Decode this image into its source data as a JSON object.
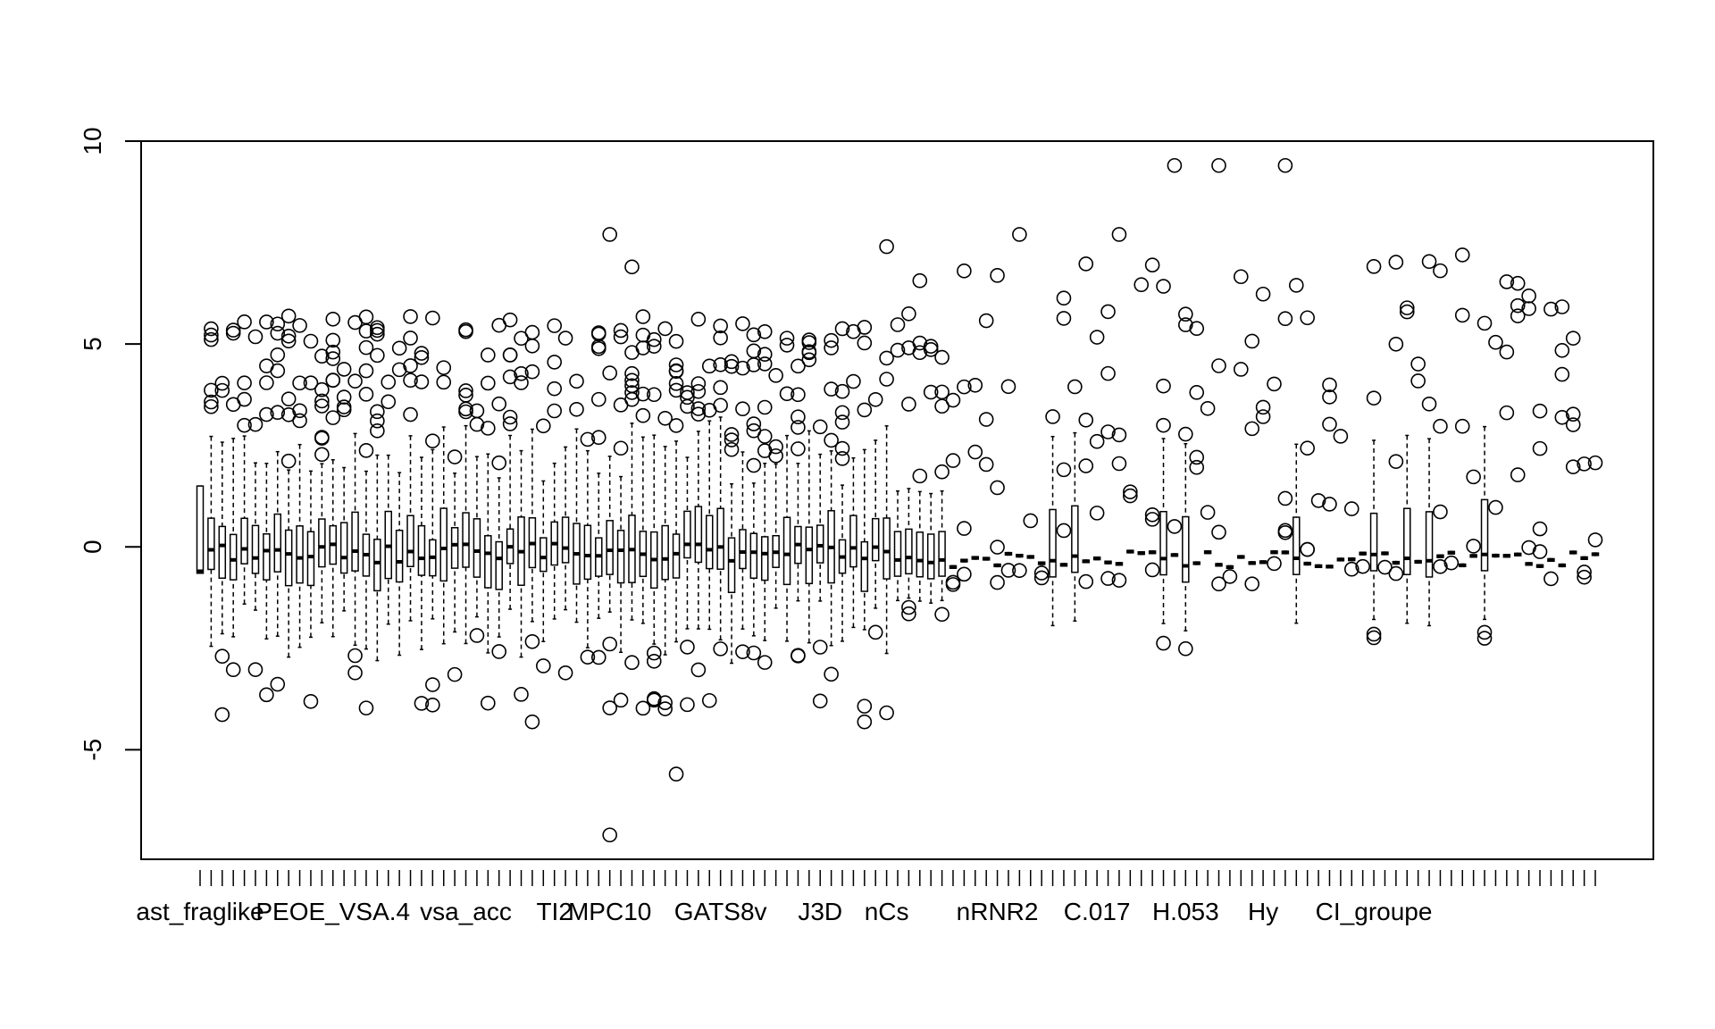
{
  "chart_data": {
    "type": "box",
    "title": "",
    "xlabel": "",
    "ylabel": "",
    "ylim": [
      -7.7,
      10.0
    ],
    "yticks": [
      -5,
      0,
      5,
      10
    ],
    "ytick_labels": [
      "-5",
      "0",
      "5",
      "10"
    ],
    "n_variables": 127,
    "xtick_labels": [
      "ast_fraglike",
      "PEOE_VSA.4",
      "vsa_acc",
      "TI2",
      "MPC10",
      "GATS8v",
      "J3D",
      "nCs",
      "nRNR2",
      "C.017",
      "H.053",
      "Hy",
      "CI_groupe"
    ],
    "xtick_label_positions": [
      1,
      13,
      25,
      33,
      38,
      48,
      57,
      63,
      73,
      82,
      90,
      97,
      107
    ],
    "grid": false,
    "legend": "none",
    "summary": {
      "typical_median": -0.2,
      "typical_box": [
        -0.7,
        0.6
      ],
      "typical_whiskers": [
        -2.0,
        2.6
      ],
      "max_outlier": 9.4,
      "min_outlier": -7.1
    },
    "notable_outliers": [
      {
        "x": 38,
        "y": 7.7
      },
      {
        "x": 38,
        "y": -7.1
      },
      {
        "x": 40,
        "y": 6.9
      },
      {
        "x": 44,
        "y": -5.6
      },
      {
        "x": 56,
        "y": 5.1
      },
      {
        "x": 63,
        "y": 7.4
      },
      {
        "x": 75,
        "y": 7.7
      },
      {
        "x": 84,
        "y": 7.7
      },
      {
        "x": 89,
        "y": 9.4
      },
      {
        "x": 93,
        "y": 9.4
      },
      {
        "x": 99,
        "y": 9.4
      }
    ]
  }
}
